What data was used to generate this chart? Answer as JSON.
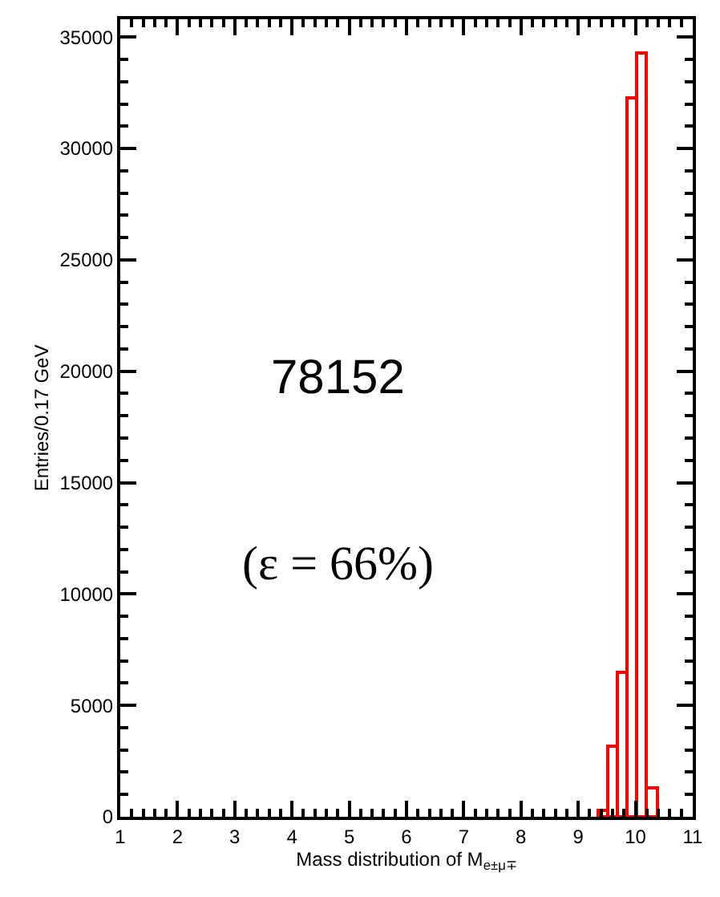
{
  "chart_data": {
    "type": "histogram",
    "xlabel": "Mass distribution of M$_{e±μ∓}$",
    "ylabel": "Entries/0.17 GeV",
    "bins": [
      9.35,
      9.52,
      9.69,
      9.86,
      10.03,
      10.2,
      10.37
    ],
    "values": [
      280,
      3170,
      6460,
      32260,
      34290,
      1270
    ],
    "color": "#ff0000",
    "xlim": [
      1,
      11
    ],
    "xticks": [
      1,
      2,
      3,
      4,
      5,
      6,
      7,
      8,
      9,
      10,
      11
    ],
    "ylim": [
      0,
      35800
    ],
    "yticks": [
      0,
      5000,
      10000,
      15000,
      20000,
      25000,
      30000,
      35000
    ],
    "annotations": [
      "78152",
      "(ε = 66%)"
    ]
  }
}
